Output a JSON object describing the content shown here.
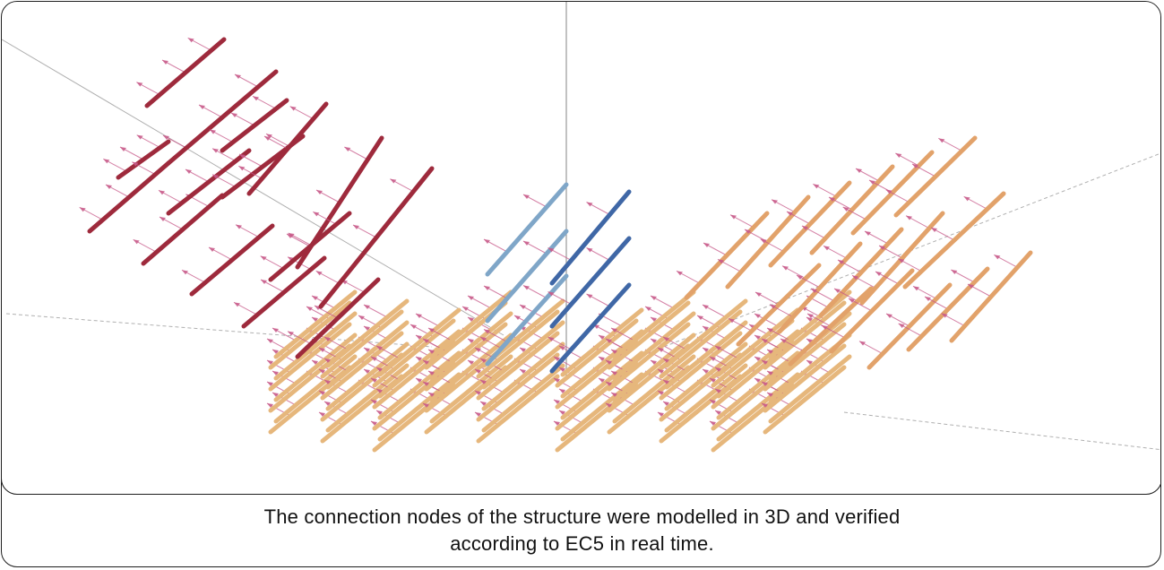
{
  "caption": {
    "line1": "The connection nodes of the structure were modelled in 3D and verified",
    "line2": "according to EC5 in real time."
  },
  "colors": {
    "frame": "#1e1e1e",
    "axis": "#b0b0b0",
    "roof_left": "#9e2a3c",
    "roof_right": "#e2a26a",
    "center_light": "#7fa6c8",
    "center_dark": "#3f67a6",
    "floor": "#e6b77c",
    "arrow": "#c85a8a"
  }
}
